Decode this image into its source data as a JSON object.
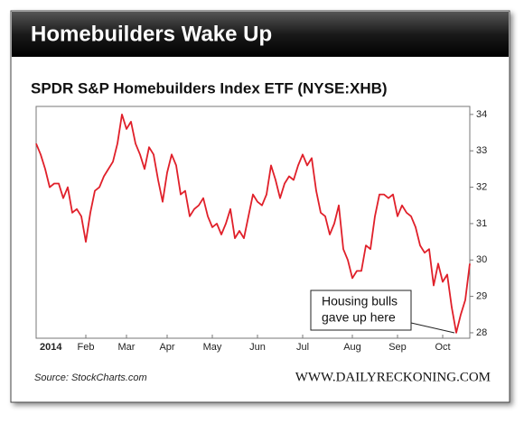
{
  "chart_data": {
    "type": "line",
    "title": "Homebuilders Wake Up",
    "subtitle": "SPDR S&P Homebuilders Index ETF (NYSE:XHB)",
    "source": "Source: StockCharts.com",
    "credit": "WWW.DAILYRECKONING.COM",
    "annotation": [
      "Housing bulls",
      "gave up here"
    ],
    "categories": [
      "2014",
      null,
      null,
      null,
      null,
      null,
      null,
      null,
      null,
      null,
      null,
      "Feb",
      null,
      null,
      null,
      null,
      null,
      null,
      null,
      null,
      "Mar",
      null,
      null,
      null,
      null,
      null,
      null,
      null,
      null,
      "Apr",
      null,
      null,
      null,
      null,
      null,
      null,
      null,
      null,
      null,
      "May",
      null,
      null,
      null,
      null,
      null,
      null,
      null,
      null,
      null,
      "Jun",
      null,
      null,
      null,
      null,
      null,
      null,
      null,
      null,
      null,
      "Jul",
      null,
      null,
      null,
      null,
      null,
      null,
      null,
      null,
      null,
      null,
      "Aug",
      null,
      null,
      null,
      null,
      null,
      null,
      null,
      null,
      null,
      "Sep",
      null,
      null,
      null,
      null,
      null,
      null,
      null,
      null,
      null,
      "Oct",
      null,
      null,
      null,
      null,
      null,
      null
    ],
    "series": [
      {
        "name": "XHB",
        "color": "#e0202a",
        "values": [
          33.2,
          32.9,
          32.5,
          32.0,
          32.1,
          32.1,
          31.7,
          32.0,
          31.3,
          31.4,
          31.2,
          30.5,
          31.3,
          31.9,
          32.0,
          32.3,
          32.5,
          32.7,
          33.2,
          34.0,
          33.6,
          33.8,
          33.2,
          32.9,
          32.5,
          33.1,
          32.9,
          32.2,
          31.6,
          32.4,
          32.9,
          32.6,
          31.8,
          31.9,
          31.2,
          31.4,
          31.5,
          31.7,
          31.2,
          30.9,
          31.0,
          30.7,
          31.0,
          31.4,
          30.6,
          30.8,
          30.6,
          31.2,
          31.8,
          31.6,
          31.5,
          31.8,
          32.6,
          32.2,
          31.7,
          32.1,
          32.3,
          32.2,
          32.6,
          32.9,
          32.6,
          32.8,
          31.9,
          31.3,
          31.2,
          30.7,
          31.0,
          31.5,
          30.3,
          30.0,
          29.5,
          29.7,
          29.7,
          30.4,
          30.3,
          31.2,
          31.8,
          31.8,
          31.7,
          31.8,
          31.2,
          31.5,
          31.3,
          31.2,
          30.9,
          30.4,
          30.2,
          30.3,
          29.3,
          29.9,
          29.4,
          29.6,
          28.7,
          28.0,
          28.5,
          28.9,
          29.9
        ]
      }
    ],
    "ylim": [
      27.85,
      34.22
    ],
    "yticks": [
      28,
      29,
      30,
      31,
      32,
      33,
      34
    ],
    "grid": false
  }
}
